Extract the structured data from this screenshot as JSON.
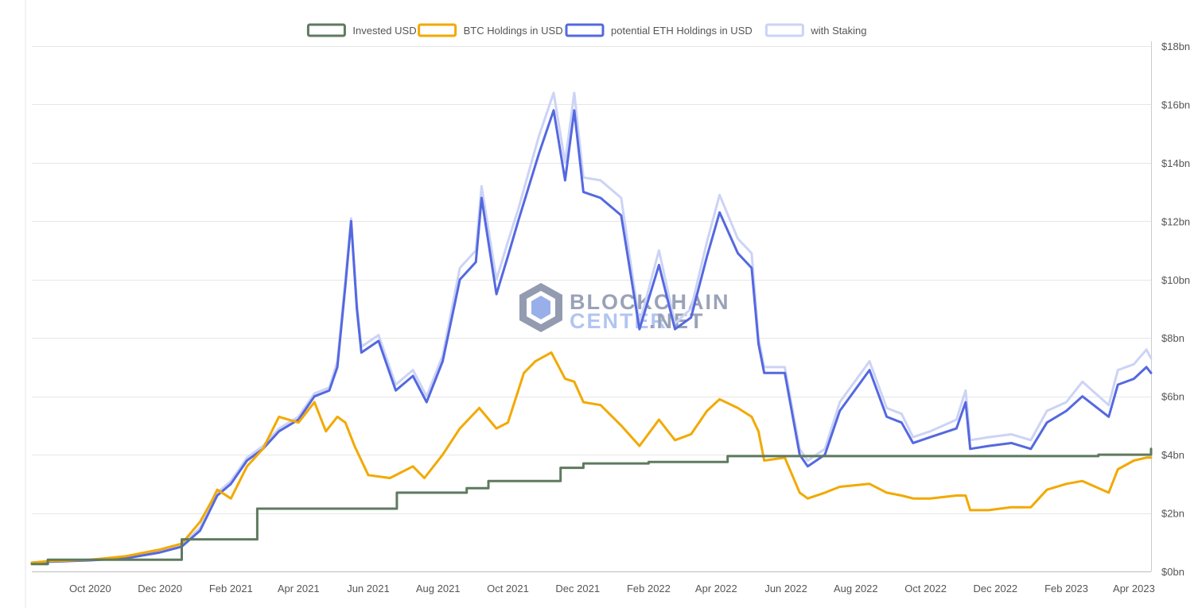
{
  "chart_data": {
    "type": "line",
    "legend_position": "top-center",
    "grid": true,
    "y_axis": {
      "position": "right",
      "ylim": [
        0,
        18
      ],
      "unit": "bn",
      "ticks": [
        "$0bn",
        "$2bn",
        "$4bn",
        "$6bn",
        "$8bn",
        "$10bn",
        "$12bn",
        "$14bn",
        "$16bn",
        "$18bn"
      ],
      "tick_values": [
        0,
        2,
        4,
        6,
        8,
        10,
        12,
        14,
        16,
        18
      ]
    },
    "x_axis": {
      "range": [
        "2020-08-11",
        "2023-04-16"
      ],
      "ticks": [
        {
          "label": "Oct 2020",
          "date": "2020-10-01"
        },
        {
          "label": "Dec 2020",
          "date": "2020-12-01"
        },
        {
          "label": "Feb 2021",
          "date": "2021-02-01"
        },
        {
          "label": "Apr 2021",
          "date": "2021-04-01"
        },
        {
          "label": "Jun 2021",
          "date": "2021-06-01"
        },
        {
          "label": "Aug 2021",
          "date": "2021-08-01"
        },
        {
          "label": "Oct 2021",
          "date": "2021-10-01"
        },
        {
          "label": "Dec 2021",
          "date": "2021-12-01"
        },
        {
          "label": "Feb 2022",
          "date": "2022-02-01"
        },
        {
          "label": "Apr 2022",
          "date": "2022-04-01"
        },
        {
          "label": "Jun 2022",
          "date": "2022-06-01"
        },
        {
          "label": "Aug 2022",
          "date": "2022-08-01"
        },
        {
          "label": "Oct 2022",
          "date": "2022-10-01"
        },
        {
          "label": "Dec 2022",
          "date": "2022-12-01"
        },
        {
          "label": "Feb 2023",
          "date": "2023-02-01"
        },
        {
          "label": "Apr 2023",
          "date": "2023-04-01"
        }
      ]
    },
    "series": [
      {
        "name": "with Staking",
        "color": "#ccd3f5",
        "step": false,
        "points": [
          [
            "2020-08-11",
            0.3
          ],
          [
            "2020-08-25",
            0.35
          ],
          [
            "2020-10-01",
            0.4
          ],
          [
            "2020-11-01",
            0.48
          ],
          [
            "2020-12-01",
            0.7
          ],
          [
            "2020-12-20",
            0.9
          ],
          [
            "2021-01-05",
            1.5
          ],
          [
            "2021-01-20",
            2.7
          ],
          [
            "2021-02-01",
            3.1
          ],
          [
            "2021-02-15",
            3.9
          ],
          [
            "2021-03-01",
            4.3
          ],
          [
            "2021-03-15",
            4.9
          ],
          [
            "2021-04-01",
            5.3
          ],
          [
            "2021-04-15",
            6.1
          ],
          [
            "2021-04-28",
            6.3
          ],
          [
            "2021-05-05",
            7.2
          ],
          [
            "2021-05-12",
            10.0
          ],
          [
            "2021-05-17",
            12.1
          ],
          [
            "2021-05-22",
            9.2
          ],
          [
            "2021-05-26",
            7.7
          ],
          [
            "2021-06-10",
            8.1
          ],
          [
            "2021-06-25",
            6.4
          ],
          [
            "2021-07-10",
            6.9
          ],
          [
            "2021-07-22",
            6.0
          ],
          [
            "2021-08-05",
            7.4
          ],
          [
            "2021-08-20",
            10.4
          ],
          [
            "2021-09-03",
            11.0
          ],
          [
            "2021-09-08",
            13.2
          ],
          [
            "2021-09-21",
            10.0
          ],
          [
            "2021-10-01",
            11.3
          ],
          [
            "2021-10-10",
            12.4
          ],
          [
            "2021-10-28",
            14.9
          ],
          [
            "2021-11-10",
            16.4
          ],
          [
            "2021-11-20",
            14.0
          ],
          [
            "2021-11-28",
            16.4
          ],
          [
            "2021-12-06",
            13.5
          ],
          [
            "2021-12-21",
            13.4
          ],
          [
            "2022-01-08",
            12.8
          ],
          [
            "2022-01-24",
            8.5
          ],
          [
            "2022-02-10",
            11.0
          ],
          [
            "2022-02-24",
            8.5
          ],
          [
            "2022-03-10",
            9.0
          ],
          [
            "2022-03-24",
            11.3
          ],
          [
            "2022-04-04",
            12.9
          ],
          [
            "2022-04-20",
            11.4
          ],
          [
            "2022-05-02",
            10.9
          ],
          [
            "2022-05-08",
            8.0
          ],
          [
            "2022-05-13",
            7.0
          ],
          [
            "2022-05-31",
            7.0
          ],
          [
            "2022-06-13",
            4.2
          ],
          [
            "2022-06-20",
            3.8
          ],
          [
            "2022-07-05",
            4.2
          ],
          [
            "2022-07-18",
            5.8
          ],
          [
            "2022-08-13",
            7.2
          ],
          [
            "2022-08-28",
            5.6
          ],
          [
            "2022-09-10",
            5.4
          ],
          [
            "2022-09-20",
            4.6
          ],
          [
            "2022-10-05",
            4.8
          ],
          [
            "2022-10-28",
            5.2
          ],
          [
            "2022-11-05",
            6.2
          ],
          [
            "2022-11-09",
            4.5
          ],
          [
            "2022-11-25",
            4.6
          ],
          [
            "2022-12-15",
            4.7
          ],
          [
            "2023-01-01",
            4.5
          ],
          [
            "2023-01-15",
            5.5
          ],
          [
            "2023-02-01",
            5.8
          ],
          [
            "2023-02-15",
            6.5
          ],
          [
            "2023-03-10",
            5.7
          ],
          [
            "2023-03-18",
            6.9
          ],
          [
            "2023-04-01",
            7.1
          ],
          [
            "2023-04-12",
            7.6
          ],
          [
            "2023-04-16",
            7.3
          ]
        ]
      },
      {
        "name": "potential ETH Holdings in USD",
        "color": "#5468e0",
        "step": false,
        "points": [
          [
            "2020-08-11",
            0.3
          ],
          [
            "2020-08-25",
            0.33
          ],
          [
            "2020-10-01",
            0.38
          ],
          [
            "2020-11-01",
            0.45
          ],
          [
            "2020-12-01",
            0.65
          ],
          [
            "2020-12-20",
            0.85
          ],
          [
            "2021-01-05",
            1.4
          ],
          [
            "2021-01-20",
            2.6
          ],
          [
            "2021-02-01",
            3.0
          ],
          [
            "2021-02-15",
            3.8
          ],
          [
            "2021-03-01",
            4.2
          ],
          [
            "2021-03-15",
            4.8
          ],
          [
            "2021-04-01",
            5.2
          ],
          [
            "2021-04-15",
            6.0
          ],
          [
            "2021-04-28",
            6.2
          ],
          [
            "2021-05-05",
            7.0
          ],
          [
            "2021-05-12",
            9.8
          ],
          [
            "2021-05-17",
            12.0
          ],
          [
            "2021-05-22",
            9.0
          ],
          [
            "2021-05-26",
            7.5
          ],
          [
            "2021-06-10",
            7.9
          ],
          [
            "2021-06-25",
            6.2
          ],
          [
            "2021-07-10",
            6.7
          ],
          [
            "2021-07-22",
            5.8
          ],
          [
            "2021-08-05",
            7.2
          ],
          [
            "2021-08-20",
            10.0
          ],
          [
            "2021-09-03",
            10.6
          ],
          [
            "2021-09-08",
            12.8
          ],
          [
            "2021-09-21",
            9.5
          ],
          [
            "2021-10-01",
            10.8
          ],
          [
            "2021-10-10",
            12.0
          ],
          [
            "2021-10-28",
            14.3
          ],
          [
            "2021-11-10",
            15.8
          ],
          [
            "2021-11-20",
            13.4
          ],
          [
            "2021-11-28",
            15.8
          ],
          [
            "2021-12-06",
            13.0
          ],
          [
            "2021-12-21",
            12.8
          ],
          [
            "2022-01-08",
            12.2
          ],
          [
            "2022-01-24",
            8.3
          ],
          [
            "2022-02-10",
            10.5
          ],
          [
            "2022-02-24",
            8.3
          ],
          [
            "2022-03-10",
            8.7
          ],
          [
            "2022-03-24",
            10.8
          ],
          [
            "2022-04-04",
            12.3
          ],
          [
            "2022-04-20",
            10.9
          ],
          [
            "2022-05-02",
            10.4
          ],
          [
            "2022-05-08",
            7.8
          ],
          [
            "2022-05-13",
            6.8
          ],
          [
            "2022-05-31",
            6.8
          ],
          [
            "2022-06-13",
            4.0
          ],
          [
            "2022-06-20",
            3.6
          ],
          [
            "2022-07-05",
            4.0
          ],
          [
            "2022-07-18",
            5.5
          ],
          [
            "2022-08-13",
            6.9
          ],
          [
            "2022-08-28",
            5.3
          ],
          [
            "2022-09-10",
            5.1
          ],
          [
            "2022-09-20",
            4.4
          ],
          [
            "2022-10-05",
            4.6
          ],
          [
            "2022-10-28",
            4.9
          ],
          [
            "2022-11-05",
            5.8
          ],
          [
            "2022-11-09",
            4.2
          ],
          [
            "2022-11-25",
            4.3
          ],
          [
            "2022-12-15",
            4.4
          ],
          [
            "2023-01-01",
            4.2
          ],
          [
            "2023-01-15",
            5.1
          ],
          [
            "2023-02-01",
            5.5
          ],
          [
            "2023-02-15",
            6.0
          ],
          [
            "2023-03-10",
            5.3
          ],
          [
            "2023-03-18",
            6.4
          ],
          [
            "2023-04-01",
            6.6
          ],
          [
            "2023-04-12",
            7.0
          ],
          [
            "2023-04-16",
            6.8
          ]
        ]
      },
      {
        "name": "BTC Holdings in USD",
        "color": "#f2a900",
        "step": false,
        "points": [
          [
            "2020-08-11",
            0.3
          ],
          [
            "2020-08-25",
            0.35
          ],
          [
            "2020-10-01",
            0.4
          ],
          [
            "2020-11-01",
            0.52
          ],
          [
            "2020-12-01",
            0.75
          ],
          [
            "2020-12-20",
            0.95
          ],
          [
            "2021-01-05",
            1.7
          ],
          [
            "2021-01-15",
            2.4
          ],
          [
            "2021-01-20",
            2.8
          ],
          [
            "2021-02-01",
            2.5
          ],
          [
            "2021-02-15",
            3.6
          ],
          [
            "2021-03-01",
            4.2
          ],
          [
            "2021-03-15",
            5.3
          ],
          [
            "2021-04-01",
            5.1
          ],
          [
            "2021-04-15",
            5.8
          ],
          [
            "2021-04-25",
            4.8
          ],
          [
            "2021-05-05",
            5.3
          ],
          [
            "2021-05-12",
            5.1
          ],
          [
            "2021-05-20",
            4.3
          ],
          [
            "2021-06-01",
            3.3
          ],
          [
            "2021-06-20",
            3.2
          ],
          [
            "2021-07-10",
            3.6
          ],
          [
            "2021-07-20",
            3.2
          ],
          [
            "2021-08-05",
            4.0
          ],
          [
            "2021-08-20",
            4.9
          ],
          [
            "2021-09-06",
            5.6
          ],
          [
            "2021-09-21",
            4.9
          ],
          [
            "2021-10-01",
            5.1
          ],
          [
            "2021-10-15",
            6.8
          ],
          [
            "2021-10-25",
            7.2
          ],
          [
            "2021-11-08",
            7.5
          ],
          [
            "2021-11-20",
            6.6
          ],
          [
            "2021-11-28",
            6.5
          ],
          [
            "2021-12-06",
            5.8
          ],
          [
            "2021-12-21",
            5.7
          ],
          [
            "2022-01-08",
            5.0
          ],
          [
            "2022-01-24",
            4.3
          ],
          [
            "2022-02-10",
            5.2
          ],
          [
            "2022-02-24",
            4.5
          ],
          [
            "2022-03-10",
            4.7
          ],
          [
            "2022-03-24",
            5.5
          ],
          [
            "2022-04-04",
            5.9
          ],
          [
            "2022-04-20",
            5.6
          ],
          [
            "2022-05-02",
            5.3
          ],
          [
            "2022-05-08",
            4.8
          ],
          [
            "2022-05-13",
            3.8
          ],
          [
            "2022-05-31",
            3.9
          ],
          [
            "2022-06-13",
            2.7
          ],
          [
            "2022-06-20",
            2.5
          ],
          [
            "2022-07-05",
            2.7
          ],
          [
            "2022-07-18",
            2.9
          ],
          [
            "2022-08-13",
            3.0
          ],
          [
            "2022-08-28",
            2.7
          ],
          [
            "2022-09-10",
            2.6
          ],
          [
            "2022-09-20",
            2.5
          ],
          [
            "2022-10-05",
            2.5
          ],
          [
            "2022-10-28",
            2.6
          ],
          [
            "2022-11-05",
            2.6
          ],
          [
            "2022-11-09",
            2.1
          ],
          [
            "2022-11-25",
            2.1
          ],
          [
            "2022-12-15",
            2.2
          ],
          [
            "2023-01-01",
            2.2
          ],
          [
            "2023-01-15",
            2.8
          ],
          [
            "2023-02-01",
            3.0
          ],
          [
            "2023-02-15",
            3.1
          ],
          [
            "2023-03-10",
            2.7
          ],
          [
            "2023-03-18",
            3.5
          ],
          [
            "2023-04-01",
            3.8
          ],
          [
            "2023-04-12",
            3.9
          ],
          [
            "2023-04-16",
            3.9
          ]
        ]
      },
      {
        "name": "Invested USD",
        "color": "#5e7a5f",
        "step": true,
        "points": [
          [
            "2020-08-11",
            0.25
          ],
          [
            "2020-08-25",
            0.4
          ],
          [
            "2020-12-20",
            1.1
          ],
          [
            "2021-02-24",
            2.15
          ],
          [
            "2021-06-26",
            2.7
          ],
          [
            "2021-08-26",
            2.85
          ],
          [
            "2021-09-14",
            3.1
          ],
          [
            "2021-11-16",
            3.55
          ],
          [
            "2021-12-06",
            3.7
          ],
          [
            "2022-02-01",
            3.75
          ],
          [
            "2022-04-11",
            3.95
          ],
          [
            "2023-03-01",
            4.0
          ],
          [
            "2023-04-16",
            4.2
          ]
        ]
      }
    ]
  },
  "legend": {
    "items": [
      {
        "label": "Invested USD",
        "color": "#5e7a5f"
      },
      {
        "label": "BTC Holdings in USD",
        "color": "#f2a900"
      },
      {
        "label": "potential ETH Holdings in USD",
        "color": "#5468e0"
      },
      {
        "label": "with Staking",
        "color": "#ccd3f5"
      }
    ]
  },
  "watermark": {
    "line1": "BLOCKCHAIN",
    "line2_a": "CENTER",
    "line2_b": ".NET"
  }
}
